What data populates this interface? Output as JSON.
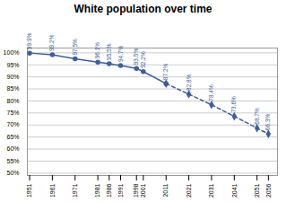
{
  "chart_data": {
    "type": "line",
    "title": "White population over time",
    "x": [
      1951,
      1961,
      1971,
      1981,
      1986,
      1991,
      1998,
      2001,
      2011,
      2021,
      2031,
      2041,
      2051,
      2056
    ],
    "series": [
      {
        "color": "#3B5FA0",
        "line_style": "solid",
        "marker": "circle",
        "values": [
          99.9,
          99.2,
          97.5,
          96.1,
          95.5,
          94.7,
          93.5,
          92.2,
          87.2,
          null,
          null,
          null,
          null,
          null
        ],
        "value_labels": [
          "99.9%",
          "99.2%",
          "97.5%",
          "96.1%",
          "95.5%",
          "94.7%",
          "93.5%",
          "92.2%",
          "87.2%",
          null,
          null,
          null,
          null,
          null
        ]
      },
      {
        "color": "#3B5FA0",
        "line_style": "dashed",
        "marker": "diamond",
        "values": [
          null,
          null,
          null,
          null,
          null,
          null,
          null,
          null,
          87.2,
          82.8,
          78.4,
          73.6,
          68.7,
          66.3
        ],
        "value_labels": [
          null,
          null,
          null,
          null,
          null,
          null,
          null,
          null,
          null,
          "82.8%",
          "78.4%",
          "73.6%",
          "68.7%",
          "66.3%"
        ]
      }
    ],
    "data_labels": true,
    "grid": true,
    "xlim": [
      1950,
      2060
    ],
    "xticks": [
      1951,
      1961,
      1971,
      1981,
      1986,
      1991,
      1998,
      2001,
      2011,
      2021,
      2031,
      2041,
      2051,
      2056
    ],
    "ylim": [
      49,
      102
    ],
    "yticks": [
      {
        "value": 50,
        "label": "50%"
      },
      {
        "value": 55,
        "label": "55%"
      },
      {
        "value": 60,
        "label": "60%"
      },
      {
        "value": 65,
        "label": "65%"
      },
      {
        "value": 70,
        "label": "70%"
      },
      {
        "value": 75,
        "label": "75%"
      },
      {
        "value": 80,
        "label": "80%"
      },
      {
        "value": 85,
        "label": "85%"
      },
      {
        "value": 90,
        "label": "90%"
      },
      {
        "value": 95,
        "label": "95%"
      },
      {
        "value": 100,
        "label": "100%"
      }
    ]
  }
}
